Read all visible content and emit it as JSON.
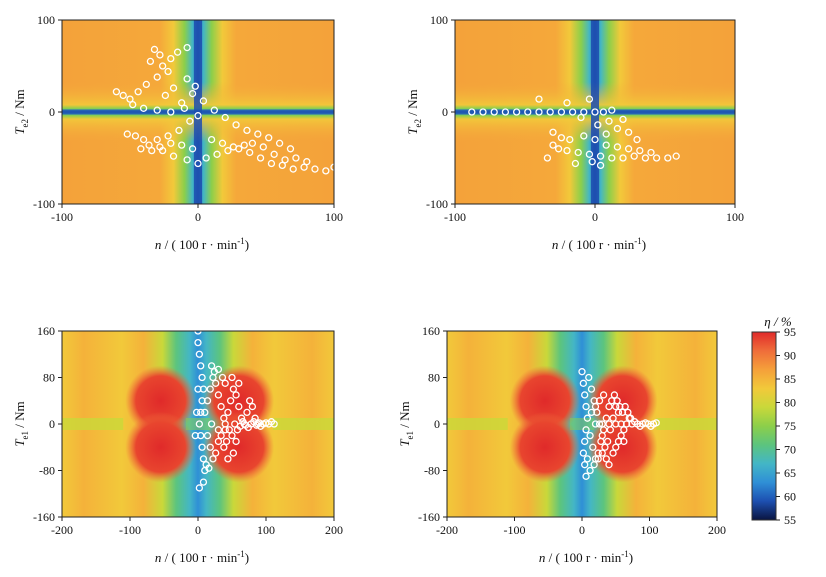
{
  "chart_data": [
    {
      "type": "heatmap",
      "id": "p1",
      "xlabel": "n / ( 100 r · min-1)",
      "ylabel": "Te2 / Nm",
      "xlim": [
        -100,
        100
      ],
      "ylim": [
        -100,
        100
      ],
      "xticks": [
        "-100",
        "0",
        "100"
      ],
      "yticks": [
        "100",
        "0",
        "-100"
      ],
      "map_style": "cross",
      "points": [
        [
          -32,
          68
        ],
        [
          -28,
          62
        ],
        [
          -35,
          55
        ],
        [
          -26,
          50
        ],
        [
          -20,
          58
        ],
        [
          -15,
          65
        ],
        [
          -8,
          70
        ],
        [
          -22,
          44
        ],
        [
          -30,
          38
        ],
        [
          -38,
          30
        ],
        [
          -44,
          22
        ],
        [
          -50,
          14
        ],
        [
          -60,
          22
        ],
        [
          -55,
          18
        ],
        [
          -48,
          8
        ],
        [
          -40,
          4
        ],
        [
          -30,
          2
        ],
        [
          -20,
          0
        ],
        [
          -10,
          4
        ],
        [
          0,
          -4
        ],
        [
          -6,
          -10
        ],
        [
          -14,
          -20
        ],
        [
          -22,
          -26
        ],
        [
          -30,
          -30
        ],
        [
          -36,
          -36
        ],
        [
          -42,
          -40
        ],
        [
          -26,
          -42
        ],
        [
          -18,
          -48
        ],
        [
          -8,
          -52
        ],
        [
          0,
          -56
        ],
        [
          6,
          -50
        ],
        [
          14,
          -46
        ],
        [
          22,
          -42
        ],
        [
          30,
          -40
        ],
        [
          38,
          -44
        ],
        [
          46,
          -50
        ],
        [
          54,
          -56
        ],
        [
          62,
          -58
        ],
        [
          70,
          -62
        ],
        [
          78,
          -60
        ],
        [
          86,
          -62
        ],
        [
          94,
          -64
        ],
        [
          100,
          -60
        ],
        [
          40,
          -34
        ],
        [
          48,
          -38
        ],
        [
          56,
          -46
        ],
        [
          64,
          -52
        ],
        [
          72,
          -50
        ],
        [
          80,
          -54
        ],
        [
          10,
          -30
        ],
        [
          18,
          -34
        ],
        [
          26,
          -38
        ],
        [
          34,
          -36
        ],
        [
          -4,
          -40
        ],
        [
          -12,
          -36
        ],
        [
          -20,
          -34
        ],
        [
          -28,
          -38
        ],
        [
          -34,
          -42
        ],
        [
          -40,
          -30
        ],
        [
          -46,
          -26
        ],
        [
          -52,
          -24
        ],
        [
          -12,
          10
        ],
        [
          -4,
          20
        ],
        [
          4,
          12
        ],
        [
          -18,
          26
        ],
        [
          -24,
          18
        ],
        [
          -8,
          36
        ],
        [
          -2,
          28
        ],
        [
          12,
          2
        ],
        [
          20,
          -6
        ],
        [
          28,
          -14
        ],
        [
          36,
          -20
        ],
        [
          44,
          -24
        ],
        [
          52,
          -28
        ],
        [
          60,
          -34
        ],
        [
          68,
          -40
        ]
      ]
    },
    {
      "type": "heatmap",
      "id": "p2",
      "xlabel": "n / ( 100 r · min-1)",
      "ylabel": "Te2 / Nm",
      "xlim": [
        -100,
        100
      ],
      "ylim": [
        -100,
        100
      ],
      "xticks": [
        "-100",
        "0",
        "100"
      ],
      "yticks": [
        "100",
        "0",
        "-100"
      ],
      "map_style": "cross",
      "points": [
        [
          -88,
          0
        ],
        [
          -80,
          0
        ],
        [
          -72,
          0
        ],
        [
          -64,
          0
        ],
        [
          -56,
          0
        ],
        [
          -48,
          0
        ],
        [
          -40,
          0
        ],
        [
          -32,
          0
        ],
        [
          -24,
          0
        ],
        [
          -16,
          0
        ],
        [
          -8,
          0
        ],
        [
          0,
          0
        ],
        [
          6,
          0
        ],
        [
          12,
          2
        ],
        [
          -40,
          14
        ],
        [
          -20,
          10
        ],
        [
          -10,
          -6
        ],
        [
          -30,
          -22
        ],
        [
          -24,
          -28
        ],
        [
          -18,
          -30
        ],
        [
          -30,
          -36
        ],
        [
          -26,
          -40
        ],
        [
          -20,
          -42
        ],
        [
          -12,
          -44
        ],
        [
          -4,
          -46
        ],
        [
          4,
          -48
        ],
        [
          12,
          -50
        ],
        [
          20,
          -50
        ],
        [
          28,
          -48
        ],
        [
          36,
          -50
        ],
        [
          44,
          -50
        ],
        [
          52,
          -50
        ],
        [
          58,
          -48
        ],
        [
          8,
          -36
        ],
        [
          16,
          -38
        ],
        [
          24,
          -40
        ],
        [
          32,
          -42
        ],
        [
          40,
          -44
        ],
        [
          -8,
          -26
        ],
        [
          0,
          -30
        ],
        [
          8,
          -24
        ],
        [
          16,
          -18
        ],
        [
          24,
          -22
        ],
        [
          30,
          -30
        ],
        [
          4,
          -58
        ],
        [
          -2,
          -54
        ],
        [
          10,
          -10
        ],
        [
          20,
          -8
        ],
        [
          -4,
          14
        ],
        [
          2,
          -14
        ],
        [
          -34,
          -50
        ],
        [
          -14,
          -56
        ]
      ]
    },
    {
      "type": "heatmap",
      "id": "p3",
      "xlabel": "n / ( 100 r · min-1)",
      "ylabel": "Te1 / Nm",
      "xlim": [
        -200,
        200
      ],
      "ylim": [
        -160,
        160
      ],
      "xticks": [
        "-200",
        "-100",
        "0",
        "100",
        "200"
      ],
      "yticks": [
        "160",
        "80",
        "0",
        "-80",
        "-160"
      ],
      "map_style": "band",
      "points": [
        [
          0,
          160
        ],
        [
          0,
          140
        ],
        [
          2,
          120
        ],
        [
          4,
          100
        ],
        [
          6,
          80
        ],
        [
          8,
          60
        ],
        [
          6,
          40
        ],
        [
          4,
          20
        ],
        [
          2,
          0
        ],
        [
          4,
          -20
        ],
        [
          6,
          -40
        ],
        [
          8,
          -60
        ],
        [
          10,
          -80
        ],
        [
          8,
          -100
        ],
        [
          10,
          20
        ],
        [
          14,
          40
        ],
        [
          18,
          60
        ],
        [
          22,
          80
        ],
        [
          26,
          70
        ],
        [
          30,
          50
        ],
        [
          34,
          30
        ],
        [
          38,
          10
        ],
        [
          40,
          -10
        ],
        [
          44,
          20
        ],
        [
          48,
          40
        ],
        [
          52,
          60
        ],
        [
          56,
          50
        ],
        [
          60,
          30
        ],
        [
          64,
          10
        ],
        [
          68,
          0
        ],
        [
          72,
          20
        ],
        [
          76,
          40
        ],
        [
          80,
          30
        ],
        [
          84,
          10
        ],
        [
          88,
          0
        ],
        [
          92,
          -4
        ],
        [
          96,
          0
        ],
        [
          100,
          2
        ],
        [
          104,
          0
        ],
        [
          108,
          4
        ],
        [
          112,
          0
        ],
        [
          14,
          -20
        ],
        [
          18,
          -40
        ],
        [
          22,
          -60
        ],
        [
          26,
          -50
        ],
        [
          30,
          -30
        ],
        [
          34,
          -20
        ],
        [
          38,
          -40
        ],
        [
          42,
          -30
        ],
        [
          46,
          -10
        ],
        [
          50,
          -20
        ],
        [
          54,
          0
        ],
        [
          58,
          -10
        ],
        [
          62,
          -4
        ],
        [
          66,
          4
        ],
        [
          70,
          -2
        ],
        [
          74,
          -6
        ],
        [
          78,
          0
        ],
        [
          82,
          4
        ],
        [
          86,
          -2
        ],
        [
          90,
          2
        ],
        [
          20,
          100
        ],
        [
          24,
          90
        ],
        [
          30,
          94
        ],
        [
          36,
          80
        ],
        [
          12,
          -70
        ],
        [
          16,
          -76
        ],
        [
          0,
          60
        ],
        [
          -2,
          20
        ],
        [
          -4,
          -20
        ],
        [
          2,
          -110
        ],
        [
          40,
          70
        ],
        [
          50,
          80
        ],
        [
          60,
          70
        ],
        [
          44,
          -60
        ],
        [
          52,
          -50
        ],
        [
          20,
          0
        ],
        [
          30,
          -10
        ],
        [
          40,
          0
        ],
        [
          56,
          -30
        ]
      ]
    },
    {
      "type": "heatmap",
      "id": "p4",
      "xlabel": "n / ( 100 r · min-1)",
      "ylabel": "Te1 / Nm",
      "xlim": [
        -200,
        200
      ],
      "ylim": [
        -160,
        160
      ],
      "xticks": [
        "-200",
        "-100",
        "0",
        "100",
        "200"
      ],
      "yticks": [
        "160",
        "80",
        "0",
        "-80",
        "-160"
      ],
      "map_style": "band",
      "points": [
        [
          0,
          90
        ],
        [
          2,
          70
        ],
        [
          4,
          50
        ],
        [
          6,
          30
        ],
        [
          8,
          10
        ],
        [
          6,
          -10
        ],
        [
          4,
          -30
        ],
        [
          2,
          -50
        ],
        [
          4,
          -70
        ],
        [
          6,
          -90
        ],
        [
          10,
          80
        ],
        [
          14,
          60
        ],
        [
          18,
          40
        ],
        [
          22,
          20
        ],
        [
          26,
          0
        ],
        [
          30,
          -20
        ],
        [
          34,
          -40
        ],
        [
          38,
          -30
        ],
        [
          42,
          -10
        ],
        [
          46,
          10
        ],
        [
          50,
          30
        ],
        [
          54,
          20
        ],
        [
          58,
          0
        ],
        [
          62,
          -10
        ],
        [
          66,
          0
        ],
        [
          70,
          10
        ],
        [
          74,
          0
        ],
        [
          78,
          4
        ],
        [
          82,
          0
        ],
        [
          86,
          -4
        ],
        [
          90,
          0
        ],
        [
          94,
          2
        ],
        [
          98,
          0
        ],
        [
          102,
          -4
        ],
        [
          106,
          0
        ],
        [
          110,
          2
        ],
        [
          12,
          -20
        ],
        [
          16,
          -40
        ],
        [
          20,
          -60
        ],
        [
          24,
          -50
        ],
        [
          28,
          -30
        ],
        [
          32,
          -10
        ],
        [
          36,
          10
        ],
        [
          40,
          30
        ],
        [
          44,
          40
        ],
        [
          48,
          50
        ],
        [
          52,
          40
        ],
        [
          56,
          30
        ],
        [
          60,
          20
        ],
        [
          64,
          30
        ],
        [
          68,
          20
        ],
        [
          72,
          10
        ],
        [
          14,
          20
        ],
        [
          20,
          30
        ],
        [
          26,
          40
        ],
        [
          32,
          50
        ],
        [
          8,
          -60
        ],
        [
          12,
          -80
        ],
        [
          18,
          -70
        ],
        [
          24,
          -60
        ],
        [
          30,
          -50
        ],
        [
          36,
          -60
        ],
        [
          40,
          -70
        ],
        [
          46,
          -50
        ],
        [
          50,
          -40
        ],
        [
          54,
          -30
        ],
        [
          58,
          -20
        ],
        [
          62,
          -30
        ],
        [
          20,
          0
        ],
        [
          30,
          0
        ],
        [
          40,
          0
        ],
        [
          50,
          0
        ]
      ]
    }
  ],
  "colorbar": {
    "title": "η / %",
    "ticks": [
      "95",
      "90",
      "85",
      "80",
      "75",
      "70",
      "65",
      "60",
      "55"
    ],
    "min": 55,
    "max": 95,
    "colors": [
      "#0a1440",
      "#1d4fb0",
      "#2f8fd6",
      "#43b6c6",
      "#5cc47e",
      "#8ccf4a",
      "#c9d83a",
      "#f2c93a",
      "#f5a03a",
      "#ef6d3a",
      "#e02a2a"
    ]
  }
}
